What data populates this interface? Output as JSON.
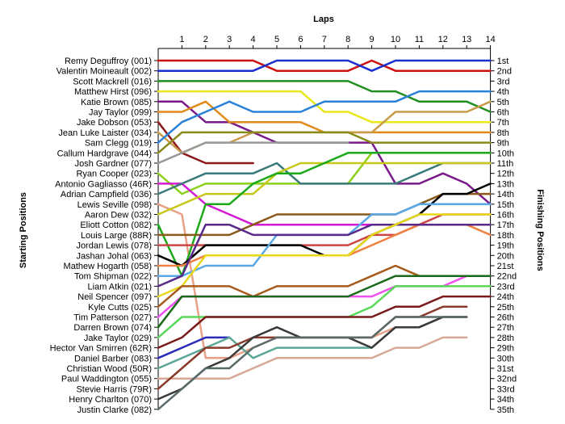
{
  "chart_data": {
    "type": "line",
    "title": "",
    "xlabel": "Laps",
    "ylabel_left": "Starting Positions",
    "ylabel_right": "Finishing Positions",
    "laps": [
      0,
      1,
      2,
      3,
      4,
      5,
      6,
      7,
      8,
      9,
      10,
      11,
      12,
      13,
      14
    ],
    "x_ticks": [
      "1",
      "2",
      "3",
      "4",
      "5",
      "6",
      "7",
      "8",
      "9",
      "10",
      "11",
      "12",
      "13",
      "14"
    ],
    "starting_labels": [
      "Remy Deguffroy (001)",
      "Valentin Moineault (002)",
      "Scott Mackrell (016)",
      "Matthew Hirst (096)",
      "Katie Brown (085)",
      "Jay Taylor (099)",
      "Jake Dobson (053)",
      "Jean Luke Laister (034)",
      "Sam Clegg (019)",
      "Callum Hardgrave (044)",
      "Josh Gardner (077)",
      "Ryan Cooper (023)",
      "Antonio Gagliasso (46R)",
      "Adrian Campfield (036)",
      "Lewis Seville (098)",
      "Aaron Dew (032)",
      "Eliott Cotton (082)",
      "Louis Large (88R)",
      "Jordan Lewis (078)",
      "Jashan Johal (063)",
      "Mathew Hogarth (058)",
      "Tom Shipman (022)",
      "Liam Atkin (021)",
      "Neil Spencer (097)",
      "Kyle Cutts (025)",
      "Tim Patterson (027)",
      "Darren Brown (074)",
      "Jake Taylor (029)",
      "Hector Van Smirren (62R)",
      "Daniel Barber (083)",
      "Christian Wood (50R)",
      "Paul Waddington (055)",
      "Stevie Harris (79R)",
      "Henry Charlton (070)",
      "Justin Clarke (082)"
    ],
    "finishing_labels": [
      "1st",
      "2nd",
      "3rd",
      "4th",
      "5th",
      "6th",
      "7th",
      "8th",
      "9th",
      "10th",
      "11th",
      "12th",
      "13th",
      "14th",
      "15th",
      "16th",
      "17th",
      "18th",
      "19th",
      "20th",
      "21st",
      "22nd",
      "23rd",
      "24th",
      "25th",
      "26th",
      "27th",
      "28th",
      "29th",
      "30th",
      "31st",
      "32nd",
      "33rd",
      "34th",
      "35th"
    ],
    "grid": false,
    "series": [
      {
        "color": "#cc1111",
        "positions": [
          1,
          1,
          1,
          1,
          1,
          2,
          2,
          2,
          2,
          1,
          2,
          2,
          2,
          2,
          2
        ]
      },
      {
        "color": "#1a2fcc",
        "positions": [
          2,
          2,
          2,
          2,
          2,
          1,
          1,
          1,
          1,
          2,
          1,
          1,
          1,
          1,
          1
        ]
      },
      {
        "color": "#1f8f1f",
        "positions": [
          3,
          3,
          3,
          3,
          3,
          3,
          3,
          3,
          3,
          4,
          4,
          5,
          5,
          5,
          6
        ]
      },
      {
        "color": "#e8e81a",
        "positions": [
          4,
          4,
          4,
          4,
          4,
          4,
          4,
          6,
          6,
          7,
          7,
          7,
          7,
          7,
          7
        ]
      },
      {
        "color": "#7a1a8a",
        "positions": [
          5,
          5,
          7,
          7,
          8,
          9,
          9,
          9,
          9,
          9,
          13,
          13,
          12,
          13,
          15
        ]
      },
      {
        "color": "#e08a1a",
        "positions": [
          6,
          6,
          5,
          7,
          7,
          7,
          7,
          8,
          8,
          8,
          8,
          8,
          8,
          8,
          8
        ]
      },
      {
        "color": "#8b1a1a",
        "positions": [
          7,
          10,
          11,
          11,
          11,
          null,
          null,
          null,
          null,
          null,
          null,
          null,
          null,
          null,
          null
        ]
      },
      {
        "color": "#c89a4a",
        "positions": [
          8,
          10,
          9,
          9,
          8,
          8,
          8,
          8,
          8,
          8,
          6,
          6,
          6,
          6,
          5
        ]
      },
      {
        "color": "#2a82d8",
        "positions": [
          9,
          7,
          6,
          5,
          6,
          6,
          6,
          5,
          5,
          5,
          5,
          4,
          4,
          4,
          4
        ]
      },
      {
        "color": "#8a8a1a",
        "positions": [
          10,
          8,
          8,
          8,
          8,
          8,
          8,
          8,
          8,
          9,
          9,
          9,
          9,
          9,
          9
        ]
      },
      {
        "color": "#999999",
        "positions": [
          11,
          10,
          9,
          9,
          9,
          9,
          9,
          9,
          9,
          null,
          null,
          null,
          null,
          null,
          null
        ]
      },
      {
        "color": "#8bd11a",
        "positions": [
          12,
          14,
          13,
          13,
          13,
          13,
          13,
          13,
          13,
          10,
          10,
          10,
          10,
          10,
          10
        ]
      },
      {
        "color": "#d41ad4",
        "positions": [
          13,
          13,
          15,
          16,
          17,
          17,
          17,
          17,
          17,
          17,
          null,
          null,
          null,
          null,
          null
        ]
      },
      {
        "color": "#3a7a7a",
        "positions": [
          14,
          13,
          12,
          12,
          12,
          11,
          13,
          13,
          13,
          13,
          13,
          12,
          11,
          11,
          11
        ]
      },
      {
        "color": "#e8a088",
        "positions": [
          15,
          16,
          30,
          30,
          29,
          28,
          28,
          28,
          28,
          28,
          27,
          27,
          26,
          26,
          null
        ]
      },
      {
        "color": "#c8c81a",
        "positions": [
          16,
          15,
          14,
          14,
          14,
          12,
          11,
          11,
          11,
          11,
          11,
          11,
          11,
          11,
          11
        ]
      },
      {
        "color": "#1aaa1a",
        "positions": [
          17,
          22,
          15,
          15,
          13,
          12,
          12,
          11,
          10,
          10,
          10,
          10,
          10,
          10,
          10
        ]
      },
      {
        "color": "#8a5a1a",
        "positions": [
          18,
          18,
          18,
          18,
          17,
          16,
          16,
          16,
          16,
          16,
          16,
          15,
          14,
          14,
          14
        ]
      },
      {
        "color": "#cc4444",
        "positions": [
          19,
          19,
          19,
          19,
          19,
          19,
          19,
          19,
          19,
          18,
          18,
          17,
          16,
          16,
          16
        ]
      },
      {
        "color": "#000000",
        "positions": [
          20,
          21,
          19,
          19,
          19,
          19,
          19,
          20,
          20,
          18,
          17,
          16,
          14,
          14,
          13
        ]
      },
      {
        "color": "#f08040",
        "positions": [
          21,
          21,
          20,
          20,
          20,
          20,
          20,
          20,
          20,
          19,
          18,
          17,
          17,
          17,
          18
        ]
      },
      {
        "color": "#58a8e8",
        "positions": [
          22,
          22,
          21,
          21,
          21,
          18,
          18,
          18,
          18,
          16,
          16,
          15,
          15,
          15,
          15
        ]
      },
      {
        "color": "#5a2a8a",
        "positions": [
          23,
          22,
          17,
          17,
          18,
          18,
          18,
          18,
          18,
          17,
          17,
          17,
          17,
          17,
          17
        ]
      },
      {
        "color": "#e8d81a",
        "positions": [
          24,
          23,
          20,
          20,
          20,
          20,
          20,
          20,
          20,
          18,
          17,
          16,
          16,
          16,
          16
        ]
      },
      {
        "color": "#a85a1a",
        "positions": [
          25,
          23,
          23,
          23,
          24,
          23,
          23,
          23,
          23,
          22,
          21,
          22,
          22,
          22,
          22
        ]
      },
      {
        "color": "#f050f0",
        "positions": [
          26,
          24,
          24,
          24,
          24,
          24,
          24,
          24,
          24,
          24,
          23,
          23,
          23,
          22,
          22
        ]
      },
      {
        "color": "#1a6a1a",
        "positions": [
          27,
          24,
          24,
          24,
          24,
          24,
          24,
          24,
          24,
          23,
          22,
          22,
          22,
          22,
          22
        ]
      },
      {
        "color": "#5ad85a",
        "positions": [
          28,
          26,
          26,
          26,
          26,
          26,
          26,
          26,
          26,
          25,
          23,
          23,
          23,
          23,
          23
        ]
      },
      {
        "color": "#7a1a1a",
        "positions": [
          29,
          28,
          26,
          26,
          26,
          26,
          26,
          26,
          26,
          26,
          25,
          25,
          24,
          24,
          24
        ]
      },
      {
        "color": "#2a2ab8",
        "positions": [
          30,
          29,
          28,
          28,
          null,
          null,
          null,
          null,
          null,
          null,
          null,
          null,
          null,
          null,
          null
        ]
      },
      {
        "color": "#5aa898",
        "positions": [
          31,
          30,
          29,
          28,
          30,
          29,
          29,
          29,
          29,
          29,
          27,
          27,
          26,
          26,
          null
        ]
      },
      {
        "color": "#d8a898",
        "positions": [
          32,
          32,
          32,
          32,
          31,
          30,
          30,
          30,
          30,
          30,
          29,
          29,
          28,
          28,
          null
        ]
      },
      {
        "color": "#8a3a2a",
        "positions": [
          33,
          31,
          29,
          29,
          28,
          28,
          28,
          28,
          28,
          28,
          26,
          26,
          25,
          25,
          null
        ]
      },
      {
        "color": "#3a3a3a",
        "positions": [
          34,
          33,
          31,
          30,
          28,
          27,
          28,
          28,
          28,
          29,
          27,
          27,
          26,
          26,
          null
        ]
      },
      {
        "color": "#5a6a6a",
        "positions": [
          35,
          33,
          31,
          31,
          29,
          28,
          28,
          28,
          28,
          28,
          26,
          26,
          26,
          26,
          null
        ]
      }
    ]
  }
}
